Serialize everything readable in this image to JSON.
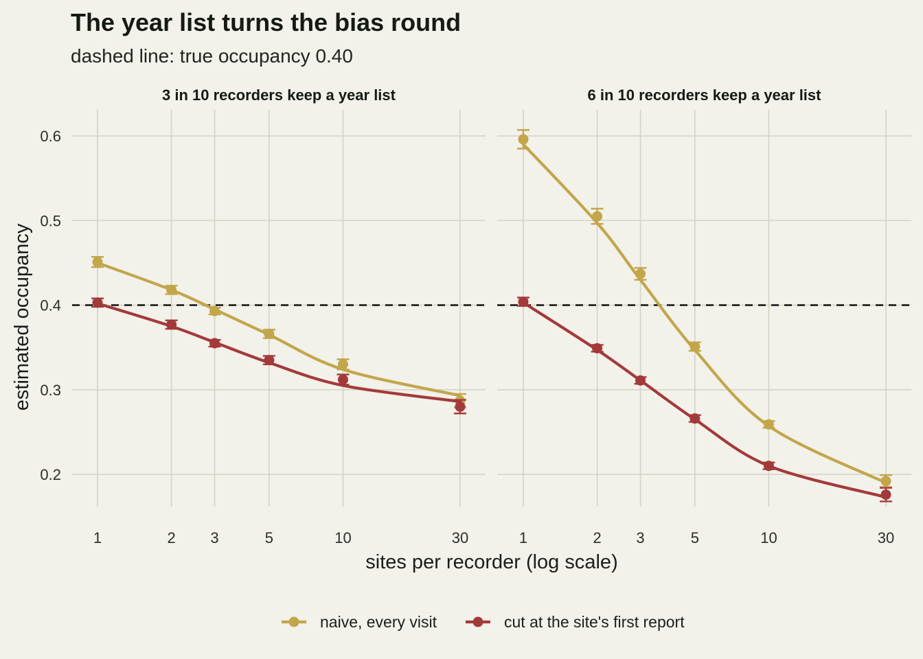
{
  "chart_data": {
    "type": "line",
    "title": "The year list turns the bias round",
    "subtitle": "dashed line: true occupancy 0.40",
    "xlabel": "sites per recorder (log scale)",
    "ylabel": "estimated occupancy",
    "x_scale": "log",
    "x_ticks": [
      1,
      2,
      3,
      5,
      10,
      30
    ],
    "y_ticks": [
      0.2,
      0.3,
      0.4,
      0.5,
      0.6
    ],
    "ylim": [
      0.15,
      0.63
    ],
    "reference_line": 0.4,
    "grid": true,
    "legend_position": "bottom",
    "colors": {
      "naive": "#c2a64a",
      "cut": "#a33a3a",
      "background": "#f2f1ea"
    },
    "legend": [
      {
        "key": "naive",
        "label": "naive, every visit"
      },
      {
        "key": "cut",
        "label": "cut at the site's first report"
      }
    ],
    "panels": [
      {
        "label": "3 in 10 recorders keep a year list",
        "series": [
          {
            "key": "naive",
            "x": [
              1,
              2,
              3,
              5,
              10,
              30
            ],
            "y": [
              0.451,
              0.418,
              0.393,
              0.366,
              0.33,
              0.287
            ],
            "err": [
              0.006,
              0.005,
              0.004,
              0.005,
              0.006,
              0.008
            ],
            "fit": [
              0.45,
              0.418,
              0.395,
              0.365,
              0.324,
              0.293
            ]
          },
          {
            "key": "cut",
            "x": [
              1,
              2,
              3,
              5,
              10,
              30
            ],
            "y": [
              0.403,
              0.377,
              0.355,
              0.335,
              0.312,
              0.28
            ],
            "err": [
              0.005,
              0.005,
              0.004,
              0.005,
              0.006,
              0.008
            ],
            "fit": [
              0.402,
              0.375,
              0.356,
              0.332,
              0.305,
              0.286
            ]
          }
        ]
      },
      {
        "label": "6 in 10 recorders keep a year list",
        "series": [
          {
            "key": "naive",
            "x": [
              1,
              2,
              3,
              5,
              10,
              30
            ],
            "y": [
              0.596,
              0.505,
              0.437,
              0.351,
              0.259,
              0.192
            ],
            "err": [
              0.011,
              0.009,
              0.007,
              0.005,
              0.004,
              0.007
            ],
            "fit": [
              0.59,
              0.497,
              0.43,
              0.347,
              0.257,
              0.19
            ]
          },
          {
            "key": "cut",
            "x": [
              1,
              2,
              3,
              5,
              10,
              30
            ],
            "y": [
              0.404,
              0.349,
              0.311,
              0.266,
              0.21,
              0.176
            ],
            "err": [
              0.005,
              0.004,
              0.004,
              0.004,
              0.004,
              0.008
            ],
            "fit": [
              0.403,
              0.347,
              0.311,
              0.265,
              0.21,
              0.173
            ]
          }
        ]
      }
    ]
  }
}
